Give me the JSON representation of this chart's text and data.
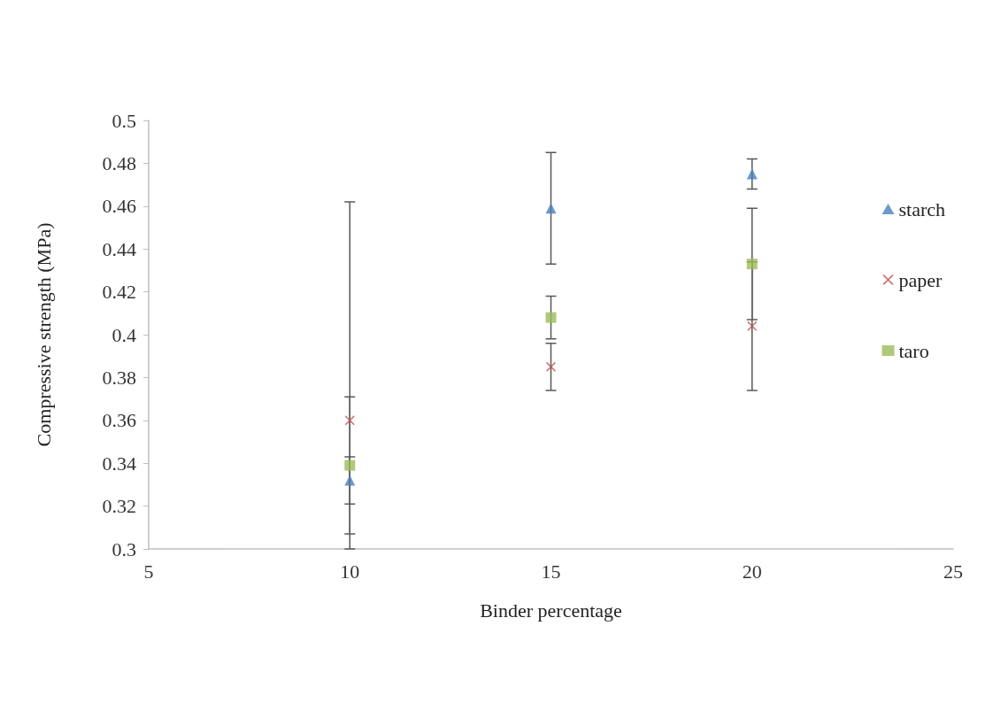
{
  "chart_data": {
    "type": "scatter",
    "xlabel": "Binder percentage",
    "ylabel": "Compressive strength (MPa)",
    "x": [
      10,
      15,
      20
    ],
    "series": [
      {
        "name": "starch",
        "color": "#4a7ebb",
        "marker": "triangle",
        "values": [
          0.332,
          0.459,
          0.475
        ],
        "errors": [
          0.011,
          0.026,
          0.007
        ]
      },
      {
        "name": "paper",
        "color": "#c0504d",
        "marker": "cross",
        "values": [
          0.36,
          0.385,
          0.404
        ],
        "errors": [
          [
            0.3,
            0.462
          ],
          0.011,
          0.03
        ]
      },
      {
        "name": "taro",
        "color": "#9bbb59",
        "marker": "square",
        "values": [
          0.339,
          0.408,
          0.433
        ],
        "errors": [
          0.032,
          0.01,
          0.026
        ]
      }
    ],
    "xlim": [
      5,
      25
    ],
    "xticks": [
      5,
      10,
      15,
      20,
      25
    ],
    "ylim": [
      0.3,
      0.5
    ],
    "yticks": [
      0.3,
      0.32,
      0.34,
      0.36,
      0.38,
      0.4,
      0.42,
      0.44,
      0.46,
      0.48,
      0.5
    ],
    "grid": false,
    "legend": "right"
  }
}
